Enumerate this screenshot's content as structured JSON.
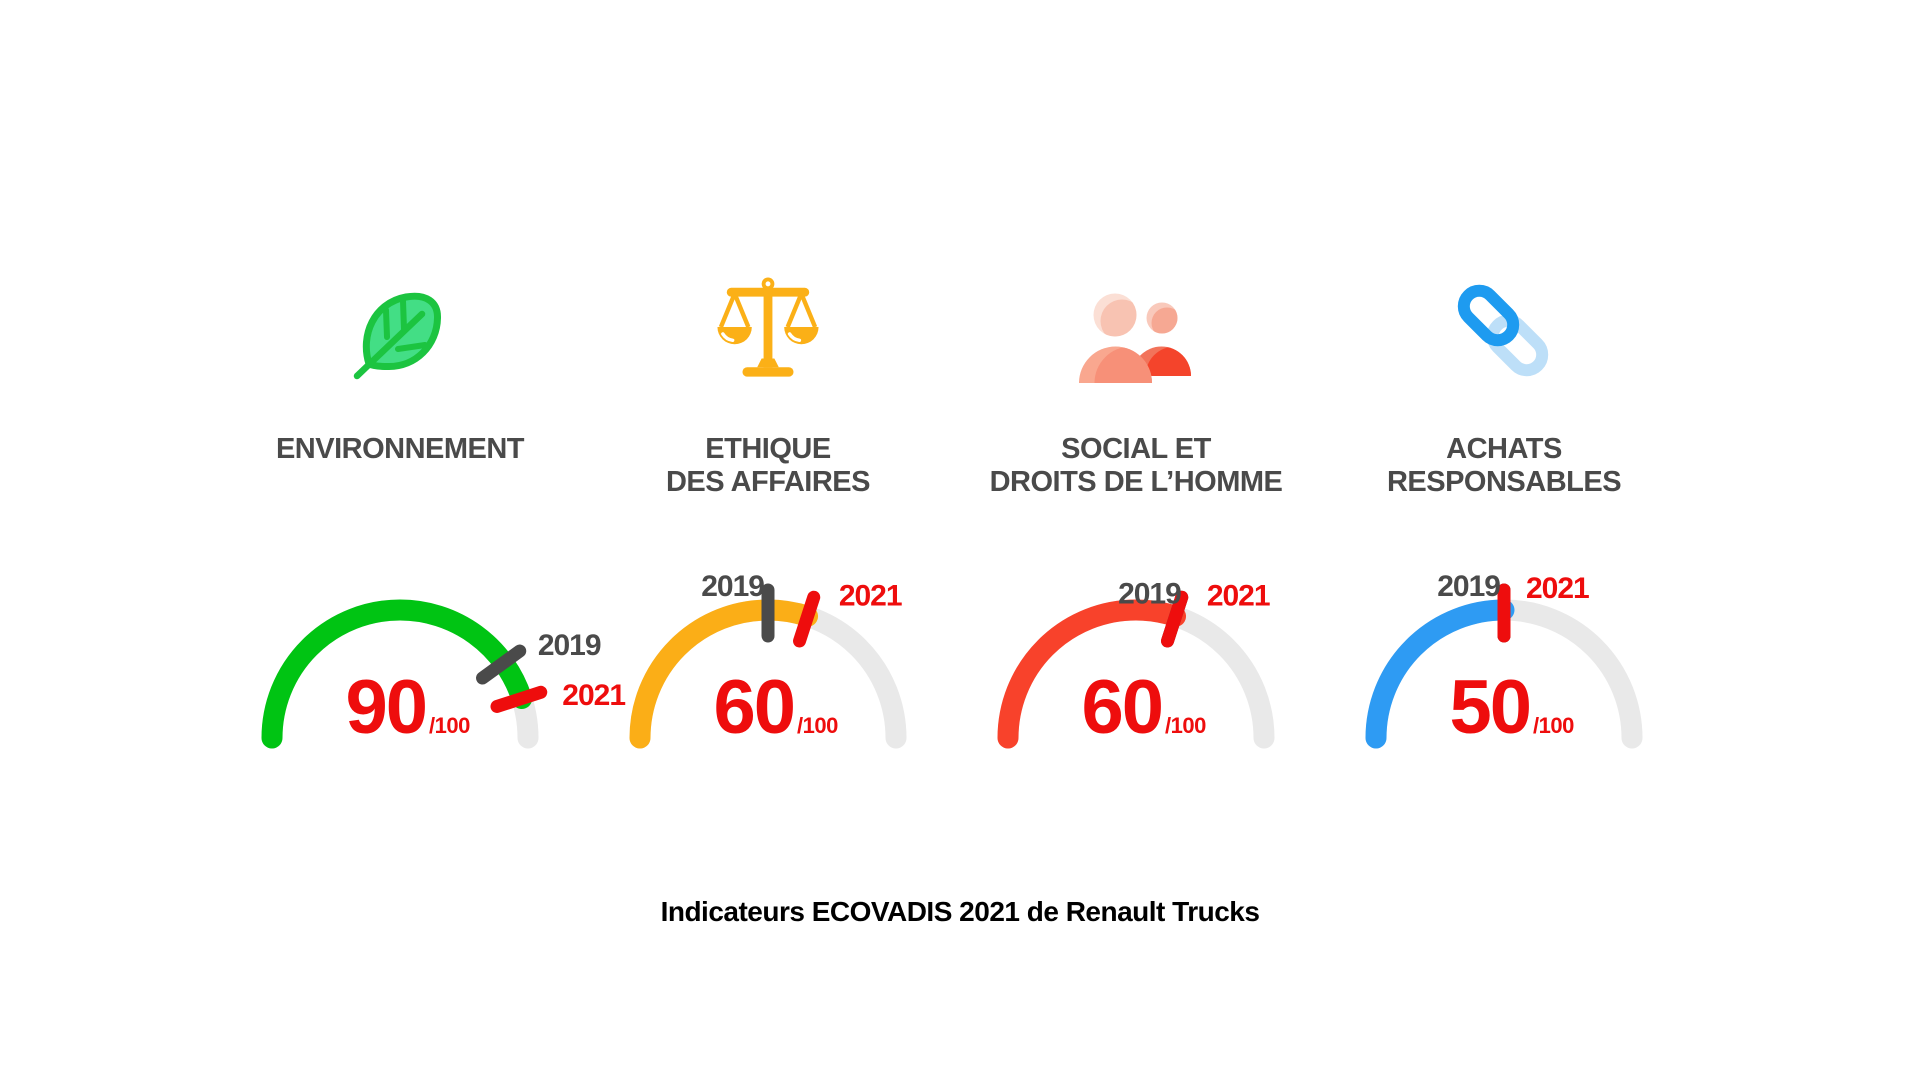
{
  "page": {
    "background": "#FFFFFF"
  },
  "caption": {
    "text": "Indicateurs ECOVADIS 2021 de Renault Trucks"
  },
  "colors": {
    "accent_red": "#EE0D0D",
    "text_dark": "#4A4A4A",
    "track_gray": "#E9E9E9",
    "caption_black": "#000000",
    "leaf_green": "#1CC440",
    "scales_amber": "#FBB017",
    "people_red": "#F4442B",
    "chain_blue": "#1E9BF0"
  },
  "chart_data": [
    {
      "type": "gauge",
      "icon": "leaf-icon",
      "title_lines": [
        "ENVIRONNEMENT"
      ],
      "value_label": "90",
      "denom_label": "/100",
      "max": 100,
      "year_prev_label": "2019",
      "year_curr_label": "2021",
      "values": {
        "y2019": 80,
        "y2021": 90
      },
      "arc_color": "#00C413",
      "label_2019_side": "right"
    },
    {
      "type": "gauge",
      "icon": "scales-icon",
      "title_lines": [
        "ETHIQUE",
        "DES AFFAIRES"
      ],
      "value_label": "60",
      "denom_label": "/100",
      "max": 100,
      "year_prev_label": "2019",
      "year_curr_label": "2021",
      "values": {
        "y2019": 50,
        "y2021": 60
      },
      "arc_color": "#FBAE17",
      "label_2019_side": "left"
    },
    {
      "type": "gauge",
      "icon": "people-icon",
      "title_lines": [
        "SOCIAL ET",
        "DROITS DE L’HOMME"
      ],
      "value_label": "60",
      "denom_label": "/100",
      "max": 100,
      "year_prev_label": "2019",
      "year_curr_label": "2021",
      "values": {
        "y2019": 60,
        "y2021": 60
      },
      "arc_color": "#F8422B",
      "label_2019_side": "left"
    },
    {
      "type": "gauge",
      "icon": "chain-link-icon",
      "title_lines": [
        "ACHATS",
        "RESPONSABLES"
      ],
      "value_label": "50",
      "denom_label": "/100",
      "max": 100,
      "year_prev_label": "2019",
      "year_curr_label": "2021",
      "values": {
        "y2019": 50,
        "y2021": 50
      },
      "arc_color": "#2E9BF3",
      "label_2019_side": "left"
    }
  ]
}
